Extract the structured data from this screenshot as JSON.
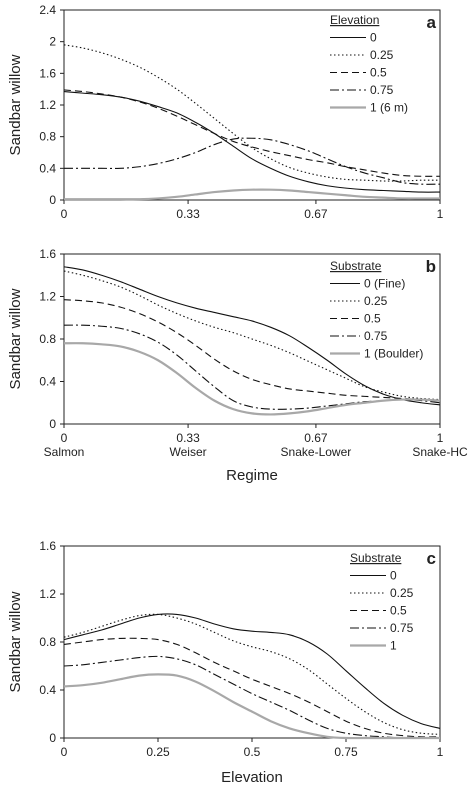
{
  "chart_data": [
    {
      "panel_label": "a",
      "type": "line",
      "xlabel": "",
      "ylabel": "Sandbar willow",
      "xlim": [
        0,
        1
      ],
      "ylim": [
        0,
        2.4
      ],
      "xticks": [
        "0",
        "0.33",
        "0.67",
        "1"
      ],
      "yticks": [
        "0",
        "0.4",
        "0.8",
        "1.2",
        "1.6",
        "2",
        "2.4"
      ],
      "legend_title": "Elevation",
      "series": [
        {
          "name": "0",
          "style": "solid",
          "color": "#111111",
          "x": [
            0,
            0.05,
            0.1,
            0.15,
            0.2,
            0.25,
            0.3,
            0.35,
            0.4,
            0.45,
            0.5,
            0.55,
            0.6,
            0.65,
            0.7,
            0.75,
            0.8,
            0.85,
            0.9,
            0.95,
            1
          ],
          "y": [
            1.37,
            1.35,
            1.33,
            1.3,
            1.25,
            1.18,
            1.1,
            0.98,
            0.84,
            0.68,
            0.52,
            0.4,
            0.3,
            0.23,
            0.18,
            0.15,
            0.13,
            0.12,
            0.11,
            0.1,
            0.1
          ]
        },
        {
          "name": "0.25",
          "style": "dotted",
          "color": "#111111",
          "x": [
            0,
            0.05,
            0.1,
            0.15,
            0.2,
            0.25,
            0.3,
            0.35,
            0.4,
            0.45,
            0.5,
            0.55,
            0.6,
            0.65,
            0.7,
            0.75,
            0.8,
            0.85,
            0.9,
            0.95,
            1
          ],
          "y": [
            1.96,
            1.92,
            1.86,
            1.78,
            1.68,
            1.55,
            1.4,
            1.22,
            1.03,
            0.84,
            0.66,
            0.52,
            0.41,
            0.34,
            0.29,
            0.26,
            0.25,
            0.24,
            0.24,
            0.25,
            0.25
          ]
        },
        {
          "name": "0.5",
          "style": "dashed",
          "color": "#111111",
          "x": [
            0,
            0.05,
            0.1,
            0.15,
            0.2,
            0.25,
            0.3,
            0.35,
            0.4,
            0.45,
            0.5,
            0.55,
            0.6,
            0.65,
            0.7,
            0.75,
            0.8,
            0.85,
            0.9,
            0.95,
            1
          ],
          "y": [
            1.39,
            1.37,
            1.34,
            1.3,
            1.24,
            1.16,
            1.06,
            0.95,
            0.84,
            0.74,
            0.67,
            0.61,
            0.56,
            0.51,
            0.47,
            0.42,
            0.38,
            0.34,
            0.31,
            0.3,
            0.3
          ]
        },
        {
          "name": "0.75",
          "style": "dashdot",
          "color": "#111111",
          "x": [
            0,
            0.05,
            0.1,
            0.15,
            0.2,
            0.25,
            0.3,
            0.35,
            0.4,
            0.45,
            0.5,
            0.55,
            0.6,
            0.65,
            0.7,
            0.75,
            0.8,
            0.85,
            0.9,
            0.95,
            1
          ],
          "y": [
            0.4,
            0.4,
            0.4,
            0.4,
            0.42,
            0.46,
            0.52,
            0.6,
            0.7,
            0.77,
            0.78,
            0.76,
            0.7,
            0.62,
            0.52,
            0.42,
            0.34,
            0.28,
            0.22,
            0.2,
            0.2
          ]
        },
        {
          "name": "1 (6 m)",
          "style": "gray",
          "color": "#a8a8a8",
          "x": [
            0,
            0.05,
            0.1,
            0.15,
            0.2,
            0.25,
            0.3,
            0.35,
            0.4,
            0.45,
            0.5,
            0.55,
            0.6,
            0.65,
            0.7,
            0.75,
            0.8,
            0.85,
            0.9,
            0.95,
            1
          ],
          "y": [
            0.01,
            0.01,
            0.01,
            0.01,
            0.01,
            0.02,
            0.04,
            0.07,
            0.1,
            0.12,
            0.13,
            0.13,
            0.12,
            0.1,
            0.08,
            0.06,
            0.04,
            0.03,
            0.02,
            0.02,
            0.02
          ]
        }
      ]
    },
    {
      "panel_label": "b",
      "type": "line",
      "xlabel": "Regime",
      "ylabel": "Sandbar willow",
      "xlim": [
        0,
        1
      ],
      "ylim": [
        0,
        1.6
      ],
      "xticks": [
        "0",
        "0.33",
        "0.67",
        "1"
      ],
      "xcategories": [
        "Salmon",
        "Weiser",
        "Snake-Lower",
        "Snake-HC"
      ],
      "yticks": [
        "0",
        "0.4",
        "0.8",
        "1.2",
        "1.6"
      ],
      "legend_title": "Substrate",
      "series": [
        {
          "name": "0 (Fine)",
          "style": "solid",
          "color": "#111111",
          "x": [
            0,
            0.05,
            0.1,
            0.15,
            0.2,
            0.25,
            0.3,
            0.35,
            0.4,
            0.45,
            0.5,
            0.55,
            0.6,
            0.65,
            0.7,
            0.75,
            0.8,
            0.85,
            0.9,
            0.95,
            1
          ],
          "y": [
            1.48,
            1.45,
            1.4,
            1.34,
            1.27,
            1.2,
            1.14,
            1.09,
            1.05,
            1.01,
            0.97,
            0.91,
            0.83,
            0.72,
            0.6,
            0.47,
            0.36,
            0.28,
            0.23,
            0.2,
            0.18
          ]
        },
        {
          "name": "0.25",
          "style": "dotted",
          "color": "#111111",
          "x": [
            0,
            0.05,
            0.1,
            0.15,
            0.2,
            0.25,
            0.3,
            0.35,
            0.4,
            0.45,
            0.5,
            0.55,
            0.6,
            0.65,
            0.7,
            0.75,
            0.8,
            0.85,
            0.9,
            0.95,
            1
          ],
          "y": [
            1.44,
            1.4,
            1.35,
            1.29,
            1.21,
            1.12,
            1.04,
            0.97,
            0.91,
            0.86,
            0.8,
            0.74,
            0.67,
            0.59,
            0.51,
            0.43,
            0.35,
            0.3,
            0.26,
            0.24,
            0.23
          ]
        },
        {
          "name": "0.5",
          "style": "dashed",
          "color": "#111111",
          "x": [
            0,
            0.05,
            0.1,
            0.15,
            0.2,
            0.25,
            0.3,
            0.35,
            0.4,
            0.45,
            0.5,
            0.55,
            0.6,
            0.65,
            0.7,
            0.75,
            0.8,
            0.85,
            0.9,
            0.95,
            1
          ],
          "y": [
            1.17,
            1.16,
            1.14,
            1.1,
            1.04,
            0.96,
            0.86,
            0.74,
            0.61,
            0.5,
            0.42,
            0.37,
            0.33,
            0.31,
            0.29,
            0.27,
            0.26,
            0.25,
            0.24,
            0.23,
            0.22
          ]
        },
        {
          "name": "0.75",
          "style": "dashdot",
          "color": "#111111",
          "x": [
            0,
            0.05,
            0.1,
            0.15,
            0.2,
            0.25,
            0.3,
            0.35,
            0.4,
            0.45,
            0.5,
            0.55,
            0.6,
            0.65,
            0.7,
            0.75,
            0.8,
            0.85,
            0.9,
            0.95,
            1
          ],
          "y": [
            0.93,
            0.93,
            0.92,
            0.9,
            0.85,
            0.77,
            0.65,
            0.5,
            0.35,
            0.22,
            0.16,
            0.14,
            0.14,
            0.15,
            0.17,
            0.19,
            0.21,
            0.22,
            0.23,
            0.22,
            0.2
          ]
        },
        {
          "name": "1 (Boulder)",
          "style": "gray",
          "color": "#a8a8a8",
          "x": [
            0,
            0.05,
            0.1,
            0.15,
            0.2,
            0.25,
            0.3,
            0.35,
            0.4,
            0.45,
            0.5,
            0.55,
            0.6,
            0.65,
            0.7,
            0.75,
            0.8,
            0.85,
            0.9,
            0.95,
            1
          ],
          "y": [
            0.76,
            0.76,
            0.75,
            0.73,
            0.68,
            0.6,
            0.48,
            0.34,
            0.22,
            0.14,
            0.1,
            0.09,
            0.1,
            0.12,
            0.15,
            0.18,
            0.2,
            0.22,
            0.23,
            0.23,
            0.22
          ]
        }
      ]
    },
    {
      "panel_label": "c",
      "type": "line",
      "xlabel": "Elevation",
      "ylabel": "Sandbar willow",
      "xlim": [
        0,
        1
      ],
      "ylim": [
        0,
        1.6
      ],
      "xticks": [
        "0",
        "0.25",
        "0.5",
        "0.75",
        "1"
      ],
      "yticks": [
        "0",
        "0.4",
        "0.8",
        "1.2",
        "1.6"
      ],
      "legend_title": "Substrate",
      "series": [
        {
          "name": "0",
          "style": "solid",
          "color": "#111111",
          "x": [
            0,
            0.05,
            0.1,
            0.15,
            0.2,
            0.25,
            0.3,
            0.35,
            0.4,
            0.45,
            0.5,
            0.55,
            0.6,
            0.65,
            0.7,
            0.75,
            0.8,
            0.85,
            0.9,
            0.95,
            1
          ],
          "y": [
            0.82,
            0.86,
            0.9,
            0.95,
            1.0,
            1.03,
            1.03,
            1.0,
            0.95,
            0.91,
            0.89,
            0.88,
            0.86,
            0.8,
            0.7,
            0.56,
            0.42,
            0.29,
            0.19,
            0.12,
            0.08
          ]
        },
        {
          "name": "0.25",
          "style": "dotted",
          "color": "#111111",
          "x": [
            0,
            0.05,
            0.1,
            0.15,
            0.2,
            0.25,
            0.3,
            0.35,
            0.4,
            0.45,
            0.5,
            0.55,
            0.6,
            0.65,
            0.7,
            0.75,
            0.8,
            0.85,
            0.9,
            0.95,
            1
          ],
          "y": [
            0.84,
            0.88,
            0.93,
            0.98,
            1.02,
            1.03,
            1.0,
            0.95,
            0.88,
            0.81,
            0.76,
            0.72,
            0.66,
            0.57,
            0.45,
            0.33,
            0.22,
            0.13,
            0.07,
            0.04,
            0.03
          ]
        },
        {
          "name": "0.5",
          "style": "dashed",
          "color": "#111111",
          "x": [
            0,
            0.05,
            0.1,
            0.15,
            0.2,
            0.25,
            0.3,
            0.35,
            0.4,
            0.45,
            0.5,
            0.55,
            0.6,
            0.65,
            0.7,
            0.75,
            0.8,
            0.85,
            0.9,
            0.95,
            1
          ],
          "y": [
            0.78,
            0.8,
            0.82,
            0.83,
            0.83,
            0.82,
            0.78,
            0.71,
            0.63,
            0.56,
            0.49,
            0.43,
            0.37,
            0.3,
            0.22,
            0.14,
            0.08,
            0.04,
            0.02,
            0.01,
            0.01
          ]
        },
        {
          "name": "0.75",
          "style": "dashdot",
          "color": "#111111",
          "x": [
            0,
            0.05,
            0.1,
            0.15,
            0.2,
            0.25,
            0.3,
            0.35,
            0.4,
            0.45,
            0.5,
            0.55,
            0.6,
            0.65,
            0.7,
            0.75,
            0.8,
            0.85,
            0.9,
            0.95,
            1
          ],
          "y": [
            0.6,
            0.61,
            0.63,
            0.65,
            0.67,
            0.68,
            0.66,
            0.61,
            0.53,
            0.45,
            0.37,
            0.3,
            0.23,
            0.15,
            0.08,
            0.04,
            0.02,
            0.01,
            0.0,
            0.0,
            0.0
          ]
        },
        {
          "name": "1",
          "style": "gray",
          "color": "#a8a8a8",
          "x": [
            0,
            0.05,
            0.1,
            0.15,
            0.2,
            0.25,
            0.3,
            0.35,
            0.4,
            0.45,
            0.5,
            0.55,
            0.6,
            0.65,
            0.7,
            0.75,
            0.8,
            0.85,
            0.9,
            0.95,
            1
          ],
          "y": [
            0.43,
            0.44,
            0.46,
            0.49,
            0.52,
            0.53,
            0.52,
            0.47,
            0.39,
            0.3,
            0.22,
            0.14,
            0.08,
            0.04,
            0.01,
            0.0,
            0.0,
            0.0,
            0.0,
            0.0,
            0.0
          ]
        }
      ]
    }
  ]
}
